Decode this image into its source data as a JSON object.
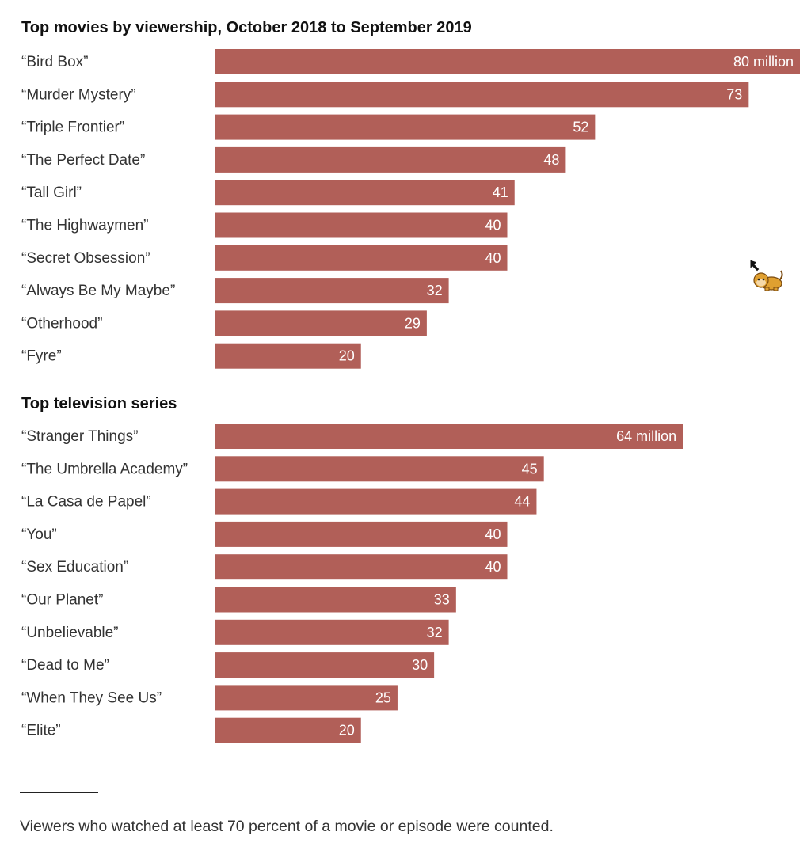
{
  "colors": {
    "bar": "#b15f58",
    "value_text": "#ffffff",
    "title_text": "#111111",
    "label_text": "#333333"
  },
  "chart_data": [
    {
      "type": "bar",
      "orientation": "horizontal",
      "title": "Top movies by viewership, October 2018 to September 2019",
      "categories": [
        "“Bird Box”",
        "“Murder Mystery”",
        "“Triple Frontier”",
        "“The Perfect Date”",
        "“Tall Girl”",
        "“The Highwaymen”",
        "“Secret Obsession”",
        "“Always Be My Maybe”",
        "“Otherhood”",
        "“Fyre”"
      ],
      "values": [
        80,
        73,
        52,
        48,
        41,
        40,
        40,
        32,
        29,
        20
      ],
      "value_labels": [
        "80 million",
        "73",
        "52",
        "48",
        "41",
        "40",
        "40",
        "32",
        "29",
        "20"
      ],
      "unit": "million",
      "xlim": [
        0,
        80
      ]
    },
    {
      "type": "bar",
      "orientation": "horizontal",
      "title": "Top television series",
      "categories": [
        "“Stranger Things”",
        "“The Umbrella Academy”",
        "“La Casa de Papel”",
        "“You”",
        "“Sex Education”",
        "“Our Planet”",
        "“Unbelievable”",
        "“Dead to Me”",
        "“When They See Us”",
        "“Elite”"
      ],
      "values": [
        64,
        45,
        44,
        40,
        40,
        33,
        32,
        30,
        25,
        20
      ],
      "value_labels": [
        "64 million",
        "45",
        "44",
        "40",
        "40",
        "33",
        "32",
        "30",
        "25",
        "20"
      ],
      "unit": "million",
      "xlim": [
        0,
        80
      ]
    }
  ],
  "footnote": "Viewers who watched at least 70 percent of a movie or episode were counted.",
  "cursor": {
    "icon": "monkey-cursor-icon"
  }
}
